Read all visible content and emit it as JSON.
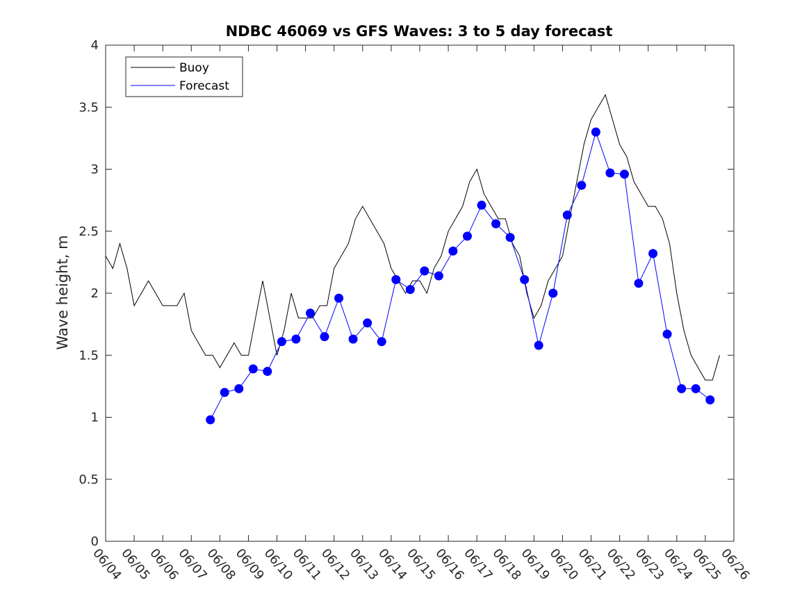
{
  "chart_data": {
    "type": "line",
    "title": "NDBC 46069 vs GFS Waves: 3 to 5 day forecast",
    "xlabel": "",
    "ylabel": "Wave height, m",
    "x_range": [
      "2017-06-04",
      "2017-06-26"
    ],
    "ylim": [
      0,
      4
    ],
    "yticks": [
      0,
      0.5,
      1,
      1.5,
      2,
      2.5,
      3,
      3.5,
      4
    ],
    "xtick_labels": [
      "06/04",
      "06/05",
      "06/06",
      "06/07",
      "06/08",
      "06/09",
      "06/10",
      "06/11",
      "06/12",
      "06/13",
      "06/14",
      "06/15",
      "06/16",
      "06/17",
      "06/18",
      "06/19",
      "06/20",
      "06/21",
      "06/22",
      "06/23",
      "06/24",
      "06/25",
      "06/26"
    ],
    "grid": false,
    "legend": {
      "position": "top-left",
      "entries": [
        "Buoy",
        "Forecast"
      ]
    },
    "colors": {
      "buoy": "#000000",
      "forecast": "#0000ff"
    },
    "series": [
      {
        "name": "Buoy",
        "color": "#000000",
        "x": [
          "06/04 00:00",
          "06/04 06:00",
          "06/04 12:00",
          "06/04 18:00",
          "06/05 00:00",
          "06/05 06:00",
          "06/05 12:00",
          "06/05 18:00",
          "06/06 00:00",
          "06/06 06:00",
          "06/06 12:00",
          "06/06 18:00",
          "06/07 00:00",
          "06/07 06:00",
          "06/07 12:00",
          "06/07 18:00",
          "06/08 00:00",
          "06/08 06:00",
          "06/08 12:00",
          "06/08 18:00",
          "06/09 00:00",
          "06/09 06:00",
          "06/09 12:00",
          "06/09 18:00",
          "06/10 00:00",
          "06/10 06:00",
          "06/10 12:00",
          "06/10 18:00",
          "06/11 00:00",
          "06/11 06:00",
          "06/11 12:00",
          "06/11 18:00",
          "06/12 00:00",
          "06/12 06:00",
          "06/12 12:00",
          "06/12 18:00",
          "06/13 00:00",
          "06/13 06:00",
          "06/13 12:00",
          "06/13 18:00",
          "06/14 00:00",
          "06/14 06:00",
          "06/14 12:00",
          "06/14 18:00",
          "06/15 00:00",
          "06/15 06:00",
          "06/15 12:00",
          "06/15 18:00",
          "06/16 00:00",
          "06/16 06:00",
          "06/16 12:00",
          "06/16 18:00",
          "06/17 00:00",
          "06/17 06:00",
          "06/17 12:00",
          "06/17 18:00",
          "06/18 00:00",
          "06/18 06:00",
          "06/18 12:00",
          "06/18 18:00",
          "06/19 00:00",
          "06/19 06:00",
          "06/19 12:00",
          "06/19 18:00",
          "06/20 00:00",
          "06/20 06:00",
          "06/20 12:00",
          "06/20 18:00",
          "06/21 00:00",
          "06/21 06:00",
          "06/21 12:00",
          "06/21 18:00",
          "06/22 00:00",
          "06/22 06:00",
          "06/22 12:00",
          "06/22 18:00",
          "06/23 00:00",
          "06/23 06:00",
          "06/23 12:00",
          "06/23 18:00",
          "06/24 00:00",
          "06/24 06:00",
          "06/24 12:00",
          "06/24 18:00",
          "06/25 00:00",
          "06/25 06:00",
          "06/25 12:00"
        ],
        "values": [
          2.3,
          2.2,
          2.4,
          2.2,
          1.9,
          2.0,
          2.1,
          2.0,
          1.9,
          1.9,
          1.9,
          2.0,
          1.7,
          1.6,
          1.5,
          1.5,
          1.4,
          1.5,
          1.6,
          1.5,
          1.5,
          1.8,
          2.1,
          1.8,
          1.5,
          1.7,
          2.0,
          1.8,
          1.8,
          1.8,
          1.9,
          1.9,
          2.2,
          2.3,
          2.4,
          2.6,
          2.7,
          2.6,
          2.5,
          2.4,
          2.2,
          2.1,
          2.0,
          2.1,
          2.1,
          2.0,
          2.2,
          2.3,
          2.5,
          2.6,
          2.7,
          2.9,
          3.0,
          2.8,
          2.7,
          2.6,
          2.6,
          2.4,
          2.3,
          2.0,
          1.8,
          1.9,
          2.1,
          2.2,
          2.3,
          2.6,
          2.9,
          3.2,
          3.4,
          3.5,
          3.6,
          3.4,
          3.2,
          3.1,
          2.9,
          2.8,
          2.7,
          2.7,
          2.6,
          2.4,
          2.0,
          1.7,
          1.5,
          1.4,
          1.3,
          1.3,
          1.5
        ]
      },
      {
        "name": "Forecast",
        "color": "#0000ff",
        "x": [
          "06/07 16:00",
          "06/08 04:00",
          "06/08 16:00",
          "06/09 04:00",
          "06/09 16:00",
          "06/10 04:00",
          "06/10 16:00",
          "06/11 04:00",
          "06/11 16:00",
          "06/12 04:00",
          "06/12 16:00",
          "06/13 04:00",
          "06/13 16:00",
          "06/14 04:00",
          "06/14 16:00",
          "06/15 04:00",
          "06/15 16:00",
          "06/16 04:00",
          "06/16 16:00",
          "06/17 04:00",
          "06/17 16:00",
          "06/18 04:00",
          "06/18 16:00",
          "06/19 04:00",
          "06/19 16:00",
          "06/20 04:00",
          "06/20 16:00",
          "06/21 04:00",
          "06/21 16:00",
          "06/22 04:00",
          "06/22 16:00",
          "06/23 04:00",
          "06/23 16:00",
          "06/24 04:00",
          "06/24 16:00",
          "06/25 04:00"
        ],
        "values": [
          0.98,
          1.2,
          1.23,
          1.39,
          1.37,
          1.61,
          1.63,
          1.84,
          1.65,
          1.96,
          1.63,
          1.76,
          1.61,
          2.11,
          2.03,
          2.18,
          2.14,
          2.34,
          2.46,
          2.71,
          2.56,
          2.45,
          2.11,
          1.58,
          2.0,
          2.63,
          2.87,
          3.3,
          2.97,
          2.96,
          2.08,
          2.32,
          1.67,
          1.23,
          1.23,
          1.14
        ]
      }
    ]
  }
}
